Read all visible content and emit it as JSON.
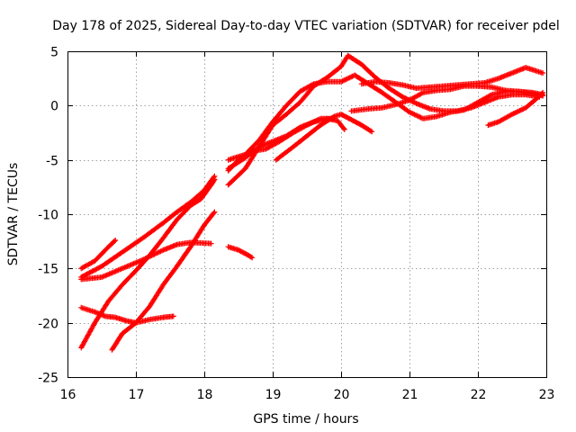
{
  "chart_data": {
    "type": "scatter",
    "title": "Day 178 of 2025, Sidereal Day-to-day VTEC variation (SDTVAR) for receiver pdel",
    "xlabel": "GPS time / hours",
    "ylabel": "SDTVAR / TECUs",
    "xlim": [
      16,
      23
    ],
    "ylim": [
      -25,
      5
    ],
    "xticks": [
      16,
      17,
      18,
      19,
      20,
      21,
      22,
      23
    ],
    "yticks": [
      5,
      0,
      -5,
      -10,
      -15,
      -20,
      -25
    ],
    "grid": true,
    "marker": "+",
    "color": "#ff0000",
    "series": [
      {
        "name": "s1",
        "points": [
          [
            16.2,
            -15.0
          ],
          [
            16.4,
            -14.3
          ],
          [
            16.6,
            -13.0
          ],
          [
            16.7,
            -12.4
          ]
        ]
      },
      {
        "name": "s2",
        "points": [
          [
            16.2,
            -15.8
          ],
          [
            16.5,
            -14.8
          ],
          [
            16.8,
            -13.5
          ],
          [
            17.1,
            -12.2
          ],
          [
            17.4,
            -10.8
          ],
          [
            17.6,
            -9.8
          ],
          [
            17.8,
            -8.9
          ],
          [
            18.0,
            -7.8
          ],
          [
            18.15,
            -6.5
          ]
        ]
      },
      {
        "name": "s3",
        "points": [
          [
            16.2,
            -16.0
          ],
          [
            16.5,
            -15.8
          ],
          [
            16.8,
            -15.0
          ],
          [
            17.1,
            -14.2
          ],
          [
            17.4,
            -13.3
          ],
          [
            17.6,
            -12.8
          ],
          [
            17.8,
            -12.6
          ],
          [
            18.1,
            -12.7
          ]
        ]
      },
      {
        "name": "s4",
        "points": [
          [
            16.2,
            -18.6
          ],
          [
            16.4,
            -19.0
          ],
          [
            16.55,
            -19.4
          ],
          [
            16.7,
            -19.5
          ],
          [
            16.85,
            -19.8
          ],
          [
            17.0,
            -20.0
          ],
          [
            17.2,
            -19.7
          ],
          [
            17.4,
            -19.5
          ],
          [
            17.55,
            -19.4
          ]
        ]
      },
      {
        "name": "s5",
        "points": [
          [
            16.2,
            -22.3
          ],
          [
            16.4,
            -20.0
          ],
          [
            16.6,
            -18.0
          ],
          [
            16.8,
            -16.5
          ],
          [
            17.0,
            -15.2
          ],
          [
            17.2,
            -13.8
          ],
          [
            17.4,
            -12.2
          ],
          [
            17.6,
            -10.5
          ],
          [
            17.8,
            -9.2
          ],
          [
            17.95,
            -8.6
          ],
          [
            18.1,
            -7.3
          ],
          [
            18.15,
            -6.8
          ]
        ]
      },
      {
        "name": "s6",
        "points": [
          [
            16.65,
            -22.5
          ],
          [
            16.8,
            -21.0
          ],
          [
            17.0,
            -20.0
          ],
          [
            17.2,
            -18.5
          ],
          [
            17.4,
            -16.5
          ],
          [
            17.6,
            -14.8
          ],
          [
            17.8,
            -13.0
          ],
          [
            18.0,
            -11.0
          ],
          [
            18.15,
            -9.8
          ]
        ]
      },
      {
        "name": "s7",
        "points": [
          [
            18.35,
            -13.0
          ],
          [
            18.5,
            -13.3
          ],
          [
            18.65,
            -13.8
          ],
          [
            18.7,
            -14.0
          ]
        ]
      },
      {
        "name": "s8",
        "points": [
          [
            18.35,
            -7.3
          ],
          [
            18.6,
            -5.8
          ],
          [
            18.8,
            -3.8
          ],
          [
            19.0,
            -1.8
          ],
          [
            19.2,
            -0.8
          ],
          [
            19.4,
            0.3
          ],
          [
            19.6,
            1.8
          ],
          [
            19.8,
            2.6
          ],
          [
            20.0,
            3.6
          ],
          [
            20.1,
            4.6
          ],
          [
            20.3,
            3.8
          ],
          [
            20.5,
            2.6
          ],
          [
            20.7,
            1.6
          ],
          [
            20.9,
            0.8
          ],
          [
            21.1,
            0.2
          ],
          [
            21.3,
            -0.3
          ],
          [
            21.5,
            -0.5
          ],
          [
            21.7,
            -0.5
          ],
          [
            21.9,
            -0.2
          ],
          [
            22.1,
            0.3
          ],
          [
            22.3,
            0.8
          ],
          [
            22.5,
            1.0
          ],
          [
            22.7,
            1.0
          ],
          [
            22.9,
            0.8
          ]
        ]
      },
      {
        "name": "s9",
        "points": [
          [
            18.35,
            -5.0
          ],
          [
            18.6,
            -4.5
          ],
          [
            18.8,
            -3.2
          ],
          [
            19.0,
            -1.5
          ],
          [
            19.2,
            0.0
          ],
          [
            19.4,
            1.3
          ],
          [
            19.6,
            2.0
          ],
          [
            19.8,
            2.2
          ],
          [
            20.0,
            2.2
          ],
          [
            20.2,
            2.8
          ],
          [
            20.4,
            2.0
          ],
          [
            20.6,
            1.2
          ],
          [
            20.8,
            0.3
          ],
          [
            21.0,
            -0.6
          ],
          [
            21.2,
            -1.2
          ],
          [
            21.4,
            -1.0
          ],
          [
            21.6,
            -0.6
          ],
          [
            21.8,
            -0.4
          ],
          [
            22.0,
            0.3
          ],
          [
            22.2,
            1.0
          ],
          [
            22.4,
            1.3
          ],
          [
            22.6,
            1.3
          ],
          [
            22.8,
            1.2
          ],
          [
            22.95,
            1.0
          ]
        ]
      },
      {
        "name": "s10",
        "points": [
          [
            18.35,
            -5.8
          ],
          [
            18.6,
            -4.8
          ],
          [
            18.8,
            -3.8
          ],
          [
            19.0,
            -3.3
          ],
          [
            19.2,
            -2.8
          ],
          [
            19.4,
            -2.0
          ],
          [
            19.6,
            -1.5
          ],
          [
            19.8,
            -1.2
          ],
          [
            19.95,
            -1.4
          ],
          [
            20.05,
            -2.2
          ]
        ]
      },
      {
        "name": "s11",
        "points": [
          [
            19.05,
            -5.0
          ],
          [
            19.3,
            -3.8
          ],
          [
            19.5,
            -2.8
          ],
          [
            19.7,
            -1.8
          ],
          [
            19.9,
            -1.0
          ],
          [
            20.0,
            -0.8
          ],
          [
            20.15,
            -1.3
          ],
          [
            20.3,
            -1.8
          ],
          [
            20.45,
            -2.4
          ]
        ]
      },
      {
        "name": "s12",
        "points": [
          [
            18.35,
            -6.0
          ],
          [
            18.5,
            -5.0
          ],
          [
            18.7,
            -4.2
          ],
          [
            18.9,
            -4.0
          ],
          [
            19.1,
            -3.3
          ],
          [
            19.3,
            -2.5
          ],
          [
            19.5,
            -1.8
          ],
          [
            19.7,
            -1.2
          ],
          [
            19.9,
            -1.2
          ]
        ]
      },
      {
        "name": "s13",
        "points": [
          [
            20.15,
            -0.5
          ],
          [
            20.4,
            -0.3
          ],
          [
            20.6,
            -0.2
          ],
          [
            20.8,
            0.1
          ],
          [
            21.0,
            0.5
          ],
          [
            21.2,
            1.2
          ],
          [
            21.4,
            1.4
          ],
          [
            21.6,
            1.5
          ],
          [
            21.8,
            1.8
          ],
          [
            22.0,
            1.8
          ],
          [
            22.2,
            1.7
          ],
          [
            22.4,
            1.4
          ],
          [
            22.6,
            1.3
          ],
          [
            22.8,
            1.1
          ],
          [
            22.95,
            0.9
          ]
        ]
      },
      {
        "name": "s14",
        "points": [
          [
            20.3,
            2.0
          ],
          [
            20.5,
            2.2
          ],
          [
            20.7,
            2.1
          ],
          [
            20.9,
            1.9
          ],
          [
            21.1,
            1.6
          ],
          [
            21.3,
            1.7
          ],
          [
            21.5,
            1.8
          ],
          [
            21.7,
            1.9
          ],
          [
            21.9,
            2.0
          ],
          [
            22.1,
            2.1
          ],
          [
            22.3,
            2.5
          ],
          [
            22.5,
            3.0
          ],
          [
            22.7,
            3.5
          ],
          [
            22.85,
            3.2
          ],
          [
            22.95,
            3.0
          ]
        ]
      },
      {
        "name": "s15",
        "points": [
          [
            22.15,
            -1.8
          ],
          [
            22.3,
            -1.5
          ],
          [
            22.5,
            -0.8
          ],
          [
            22.7,
            -0.2
          ],
          [
            22.85,
            0.6
          ],
          [
            22.95,
            1.2
          ]
        ]
      }
    ]
  }
}
